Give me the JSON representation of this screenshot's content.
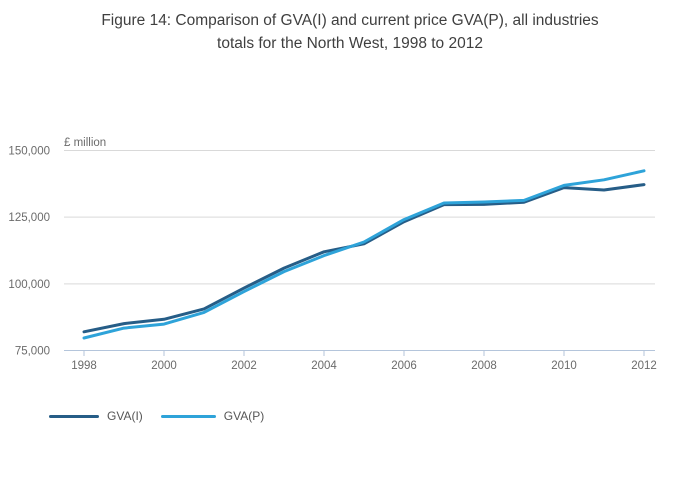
{
  "title": {
    "line1": "Figure 14: Comparison of GVA(I) and current price GVA(P), all industries",
    "line2": "totals for the North West, 1998 to 2012"
  },
  "colors": {
    "gva_i": "#265d87",
    "gva_p": "#2ea3d9",
    "grid": "#d9d9d9",
    "axis": "#b4c5db",
    "title_text": "#3f3f3f",
    "tick_text": "#6b6b6b"
  },
  "legend": [
    {
      "label": "GVA(I)",
      "color_key": "gva_i"
    },
    {
      "label": "GVA(P)",
      "color_key": "gva_p"
    }
  ],
  "chart_data": {
    "type": "line",
    "title": "Figure 14: Comparison of GVA(I) and current price GVA(P), all industries totals for the North West, 1998 to 2012",
    "unit_label": "£ million",
    "x": [
      1998,
      1999,
      2000,
      2001,
      2002,
      2003,
      2004,
      2005,
      2006,
      2007,
      2008,
      2009,
      2010,
      2011,
      2012
    ],
    "series": [
      {
        "name": "GVA(I)",
        "color_key": "gva_i",
        "values": [
          82000,
          85100,
          86700,
          90600,
          98400,
          105900,
          112000,
          115000,
          123300,
          129700,
          129800,
          130600,
          136100,
          135200,
          137200
        ]
      },
      {
        "name": "GVA(P)",
        "color_key": "gva_p",
        "values": [
          79700,
          83400,
          84900,
          89300,
          97100,
          104600,
          110600,
          115700,
          124100,
          130300,
          130700,
          131300,
          136900,
          139000,
          142400
        ]
      }
    ],
    "ylim": [
      75000,
      150000
    ],
    "yticks": [
      75000,
      100000,
      125000,
      150000
    ],
    "ytick_labels": [
      "75,000",
      "100,000",
      "125,000",
      "150,000"
    ],
    "xticks": [
      1998,
      2000,
      2002,
      2004,
      2006,
      2008,
      2010,
      2012
    ],
    "xtick_labels": [
      "1998",
      "2000",
      "2002",
      "2004",
      "2006",
      "2008",
      "2010",
      "2012"
    ],
    "grid": "horizontal",
    "legend_position": "bottom-left"
  }
}
